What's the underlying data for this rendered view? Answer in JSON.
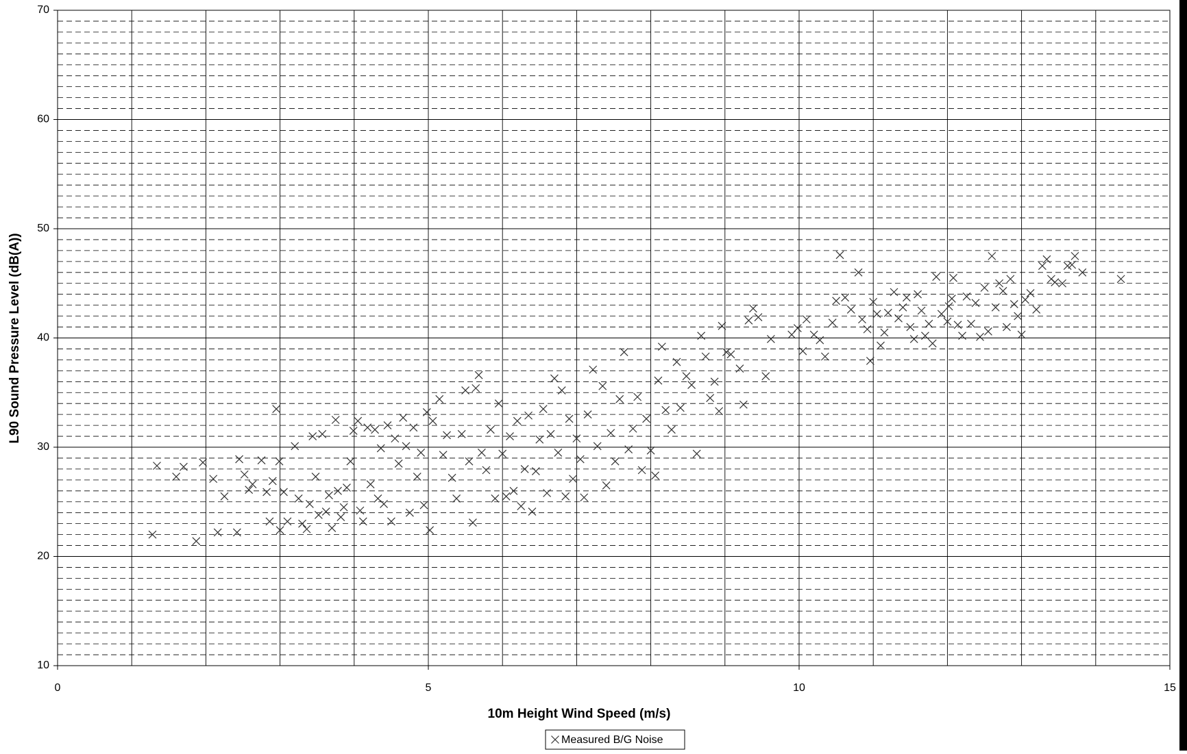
{
  "chart_data": {
    "type": "scatter",
    "x_label": "10m Height Wind Speed (m/s)",
    "y_label": "L90 Sound Pressure Level (dB(A))",
    "xlim": [
      0,
      15
    ],
    "ylim": [
      10,
      70
    ],
    "xticks": [
      0,
      5,
      10,
      15
    ],
    "yticks": [
      10,
      20,
      30,
      40,
      50,
      60,
      70
    ],
    "x_gridlines": [
      1,
      2,
      3,
      4,
      5,
      6,
      7,
      8,
      9,
      10,
      11,
      12,
      13,
      14
    ],
    "y_minor_gridlines": [
      11,
      12,
      13,
      14,
      15,
      16,
      17,
      18,
      19,
      21,
      22,
      23,
      24,
      25,
      26,
      27,
      28,
      29,
      31,
      32,
      33,
      34,
      35,
      36,
      37,
      38,
      39,
      41,
      42,
      43,
      44,
      45,
      46,
      47,
      48,
      49,
      51,
      52,
      53,
      54,
      55,
      56,
      57,
      58,
      59,
      61,
      62,
      63,
      64,
      65,
      66,
      67,
      68,
      69
    ],
    "grid": true,
    "legend": "bottom",
    "series": [
      {
        "name": "Measured B/G Noise",
        "color": "#333333",
        "marker": "x",
        "x": [
          1.28,
          1.34,
          1.6,
          1.7,
          1.87,
          1.96,
          2.1,
          2.16,
          2.25,
          2.42,
          2.45,
          2.52,
          2.58,
          2.63,
          2.75,
          2.82,
          2.86,
          2.9,
          2.95,
          2.99,
          3.0,
          3.05,
          3.1,
          3.2,
          3.25,
          3.3,
          3.36,
          3.4,
          3.44,
          3.48,
          3.52,
          3.57,
          3.62,
          3.66,
          3.7,
          3.75,
          3.78,
          3.82,
          3.86,
          3.9,
          3.95,
          3.99,
          4.05,
          4.08,
          4.12,
          4.18,
          4.22,
          4.28,
          4.32,
          4.36,
          4.4,
          4.45,
          4.5,
          4.55,
          4.6,
          4.66,
          4.7,
          4.75,
          4.8,
          4.85,
          4.9,
          4.94,
          4.98,
          5.02,
          5.06,
          5.15,
          5.2,
          5.25,
          5.32,
          5.38,
          5.45,
          5.5,
          5.55,
          5.6,
          5.64,
          5.68,
          5.72,
          5.78,
          5.84,
          5.9,
          5.95,
          6.0,
          6.05,
          6.1,
          6.15,
          6.2,
          6.25,
          6.3,
          6.35,
          6.4,
          6.45,
          6.5,
          6.55,
          6.6,
          6.65,
          6.7,
          6.75,
          6.8,
          6.85,
          6.9,
          6.95,
          7.0,
          7.05,
          7.1,
          7.15,
          7.22,
          7.28,
          7.35,
          7.4,
          7.46,
          7.52,
          7.58,
          7.64,
          7.7,
          7.76,
          7.82,
          7.88,
          7.94,
          8.0,
          8.06,
          8.1,
          8.15,
          8.2,
          8.28,
          8.35,
          8.4,
          8.48,
          8.55,
          8.62,
          8.68,
          8.74,
          8.8,
          8.86,
          8.92,
          8.96,
          9.02,
          9.08,
          9.2,
          9.25,
          9.32,
          9.38,
          9.45,
          9.55,
          9.62,
          9.9,
          9.98,
          10.05,
          10.1,
          10.2,
          10.28,
          10.35,
          10.45,
          10.5,
          10.55,
          10.62,
          10.7,
          10.8,
          10.85,
          10.92,
          10.96,
          11.0,
          11.05,
          11.1,
          11.15,
          11.2,
          11.28,
          11.34,
          11.4,
          11.45,
          11.5,
          11.55,
          11.6,
          11.65,
          11.7,
          11.75,
          11.8,
          11.85,
          11.92,
          12.0,
          12.06,
          12.02,
          12.08,
          12.14,
          12.2,
          12.26,
          12.32,
          12.38,
          12.44,
          12.5,
          12.55,
          12.6,
          12.65,
          12.7,
          12.75,
          12.8,
          12.85,
          12.9,
          12.95,
          13.0,
          13.05,
          13.12,
          13.2,
          13.28,
          13.34,
          13.4,
          13.45,
          13.55,
          13.62,
          13.68,
          13.72,
          13.82,
          14.34
        ],
        "values": [
          22.0,
          28.3,
          27.3,
          28.2,
          21.4,
          28.6,
          27.1,
          22.2,
          25.5,
          22.2,
          28.9,
          27.5,
          26.1,
          26.6,
          28.8,
          25.9,
          23.2,
          26.9,
          33.5,
          28.7,
          22.4,
          25.9,
          23.2,
          30.1,
          25.3,
          23.0,
          22.5,
          24.8,
          31.0,
          27.3,
          23.8,
          31.2,
          24.1,
          25.6,
          22.6,
          32.5,
          26.0,
          23.6,
          24.5,
          26.3,
          28.7,
          31.5,
          32.4,
          24.2,
          23.2,
          31.8,
          26.6,
          31.6,
          25.3,
          29.9,
          24.8,
          32.0,
          23.2,
          30.8,
          28.5,
          32.7,
          30.1,
          24.0,
          31.8,
          27.3,
          29.5,
          24.7,
          33.2,
          22.4,
          32.4,
          34.4,
          29.3,
          31.1,
          27.2,
          25.3,
          31.2,
          35.2,
          28.7,
          23.1,
          35.4,
          36.6,
          29.5,
          27.9,
          31.6,
          25.3,
          34.0,
          29.4,
          25.5,
          31.0,
          26.0,
          32.4,
          24.6,
          28.0,
          32.9,
          24.1,
          27.8,
          30.7,
          33.5,
          25.8,
          31.2,
          36.3,
          29.5,
          35.2,
          25.5,
          32.6,
          27.1,
          30.8,
          28.9,
          25.4,
          33.0,
          37.1,
          30.1,
          35.6,
          26.5,
          31.3,
          28.7,
          34.4,
          38.7,
          29.8,
          31.7,
          34.6,
          27.9,
          32.6,
          29.7,
          27.4,
          36.1,
          39.2,
          33.4,
          31.6,
          37.8,
          33.6,
          36.5,
          35.7,
          29.4,
          40.2,
          38.3,
          34.5,
          36.0,
          33.3,
          41.1,
          38.7,
          38.5,
          37.2,
          33.9,
          41.6,
          42.7,
          41.9,
          36.5,
          39.9,
          40.3,
          40.9,
          38.8,
          41.7,
          40.3,
          39.8,
          38.3,
          41.4,
          43.4,
          47.6,
          43.7,
          42.6,
          46.0,
          41.7,
          40.8,
          37.9,
          43.3,
          42.2,
          39.3,
          40.5,
          42.3,
          44.2,
          41.8,
          42.8,
          43.7,
          41.0,
          39.9,
          44.0,
          42.5,
          40.2,
          41.3,
          39.5,
          45.6,
          42.2,
          41.5,
          43.6,
          42.9,
          45.5,
          41.2,
          40.2,
          43.8,
          41.3,
          43.2,
          40.1,
          44.6,
          40.6,
          47.5,
          42.8,
          45.0,
          44.3,
          41.0,
          45.4,
          43.1,
          42.0,
          40.3,
          43.5,
          44.1,
          42.6,
          46.6,
          47.2,
          45.4,
          45.1,
          45.0,
          46.6,
          46.7,
          47.5,
          46.0,
          45.4
        ]
      }
    ]
  }
}
